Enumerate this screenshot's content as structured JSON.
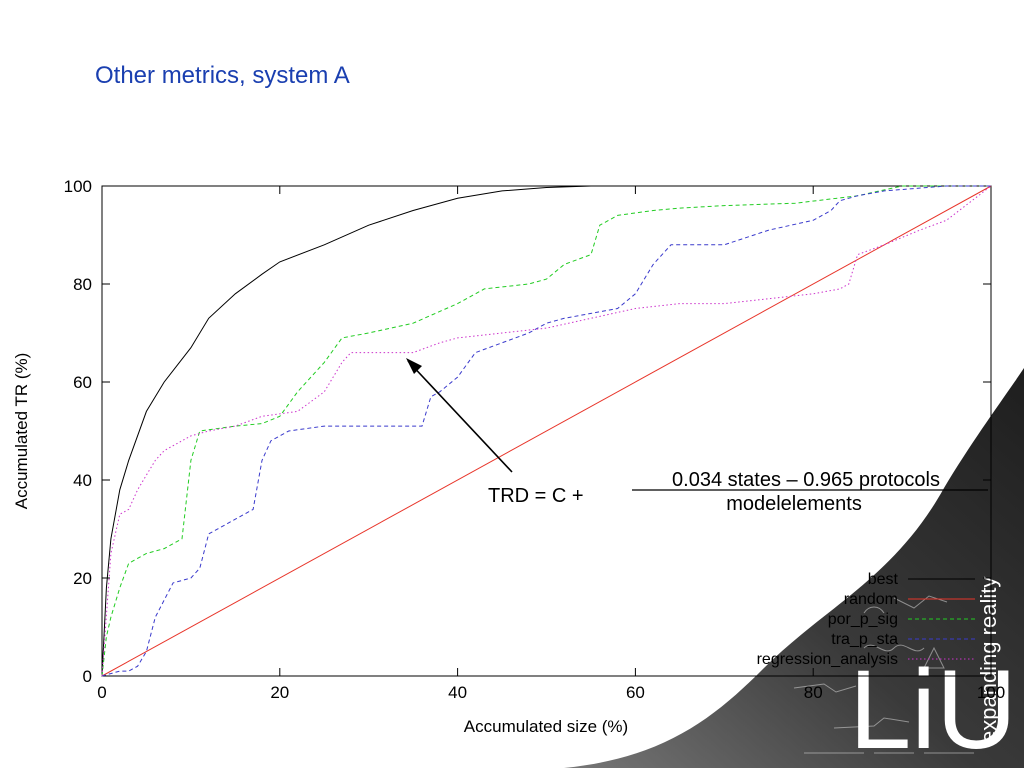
{
  "slide": {
    "title": "Other metrics, system A"
  },
  "branding": {
    "logo_text": "LiU",
    "tagline": "expanding reality"
  },
  "annotation": {
    "lhs": "TRD = C +",
    "numerator": "0.034 states – 0.965 protocols",
    "denominator": "modelelements"
  },
  "colors": {
    "best": "#000000",
    "random": "#e8352a",
    "por_p_sig": "#22cc22",
    "tra_p_sta": "#3a3acc",
    "regression_analysis": "#cc33cc"
  },
  "chart_data": {
    "type": "line",
    "title": "",
    "xlabel": "Accumulated size (%)",
    "ylabel": "Accumulated TR (%)",
    "xlim": [
      0,
      100
    ],
    "ylim": [
      0,
      100
    ],
    "xticks": [
      "0",
      "20",
      "40",
      "60",
      "80",
      "100"
    ],
    "yticks": [
      "0",
      "20",
      "40",
      "60",
      "80",
      "100"
    ],
    "grid": false,
    "legend_position": "bottom-right",
    "series": [
      {
        "name": "best",
        "style": "solid",
        "color": "#000000",
        "x": [
          0,
          0.5,
          1,
          2,
          3,
          5,
          7,
          10,
          12,
          15,
          18,
          20,
          25,
          30,
          35,
          40,
          45,
          50,
          55,
          60,
          100
        ],
        "y": [
          0,
          18,
          28,
          38,
          44,
          54,
          60,
          67,
          73,
          78,
          82,
          84.5,
          88,
          92,
          95,
          97.5,
          99,
          99.7,
          100,
          100,
          100
        ]
      },
      {
        "name": "random",
        "style": "solid",
        "color": "#e8352a",
        "x": [
          0,
          100
        ],
        "y": [
          0,
          100
        ]
      },
      {
        "name": "por_p_sig",
        "style": "dashed",
        "color": "#22cc22",
        "x": [
          0,
          0.5,
          1,
          2,
          3,
          5,
          7,
          9,
          10,
          11,
          15,
          18,
          20,
          22,
          25,
          27,
          30,
          35,
          40,
          43,
          48,
          50,
          52,
          55,
          56,
          58,
          62,
          65,
          70,
          78,
          85,
          90,
          100
        ],
        "y": [
          0,
          8,
          12,
          18,
          23,
          25,
          26,
          28,
          44,
          50,
          51,
          51.5,
          53,
          58,
          64,
          69,
          70,
          72,
          76,
          79,
          80,
          81,
          84,
          86,
          92,
          94,
          95,
          95.5,
          96,
          96.5,
          98,
          100,
          100
        ]
      },
      {
        "name": "tra_p_sta",
        "style": "dashed",
        "color": "#3a3acc",
        "x": [
          0,
          2,
          3,
          4,
          5,
          6,
          8,
          10,
          11,
          12,
          15,
          17,
          18,
          19,
          21,
          25,
          30,
          36,
          37,
          38,
          40,
          42,
          45,
          48,
          50,
          52,
          55,
          58,
          60,
          62,
          64,
          70,
          75,
          80,
          82,
          83,
          85,
          88,
          95,
          100
        ],
        "y": [
          0,
          1,
          1,
          2,
          5,
          12,
          19,
          20,
          22,
          29,
          32,
          34,
          44,
          48,
          50,
          51,
          51,
          51,
          57,
          58,
          61,
          66,
          68,
          70,
          72,
          73,
          74,
          75,
          78,
          84,
          88,
          88,
          91,
          93,
          95,
          97,
          98,
          99,
          100,
          100
        ]
      },
      {
        "name": "regression_analysis",
        "style": "dotted",
        "color": "#cc33cc",
        "x": [
          0,
          1,
          2,
          3,
          4,
          5,
          6,
          7,
          8,
          10,
          12,
          15,
          18,
          22,
          25,
          27,
          28,
          30,
          35,
          38,
          40,
          45,
          50,
          55,
          60,
          65,
          70,
          75,
          80,
          83,
          84,
          85,
          88,
          92,
          95,
          100
        ],
        "y": [
          0,
          25,
          33,
          34,
          38,
          41,
          44,
          46,
          47,
          49,
          50,
          51,
          53,
          54,
          58,
          64,
          66,
          66,
          66,
          68,
          69,
          70,
          71,
          73,
          75,
          76,
          76,
          77,
          78,
          79,
          80,
          86,
          88,
          91,
          93,
          100
        ]
      }
    ]
  }
}
